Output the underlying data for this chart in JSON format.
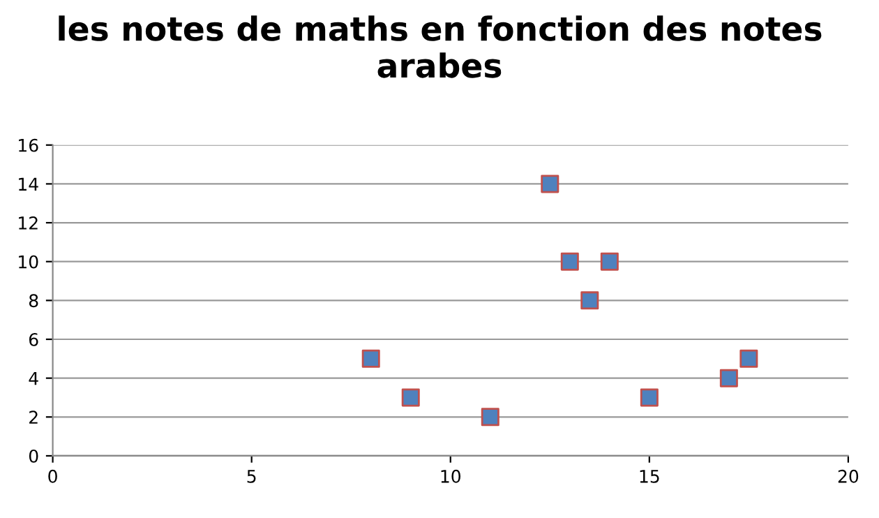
{
  "chart_data": {
    "type": "scatter",
    "title": "les notes de maths en fonction des notes arabes",
    "x": [
      8,
      9,
      11,
      12.5,
      13,
      13.5,
      14,
      15,
      17,
      17.5
    ],
    "series": [
      {
        "color": "#4f81bd",
        "values": [
          5,
          3,
          2,
          14,
          10,
          8,
          10,
          3,
          4,
          5
        ]
      }
    ],
    "xlim": [
      0,
      20
    ],
    "xticks": [
      0,
      5,
      10,
      15,
      20
    ],
    "ylim": [
      0,
      16
    ],
    "yticks": [
      0,
      2,
      4,
      6,
      8,
      10,
      12,
      14,
      16
    ],
    "grid": "y",
    "marker": "square",
    "legend": false
  }
}
